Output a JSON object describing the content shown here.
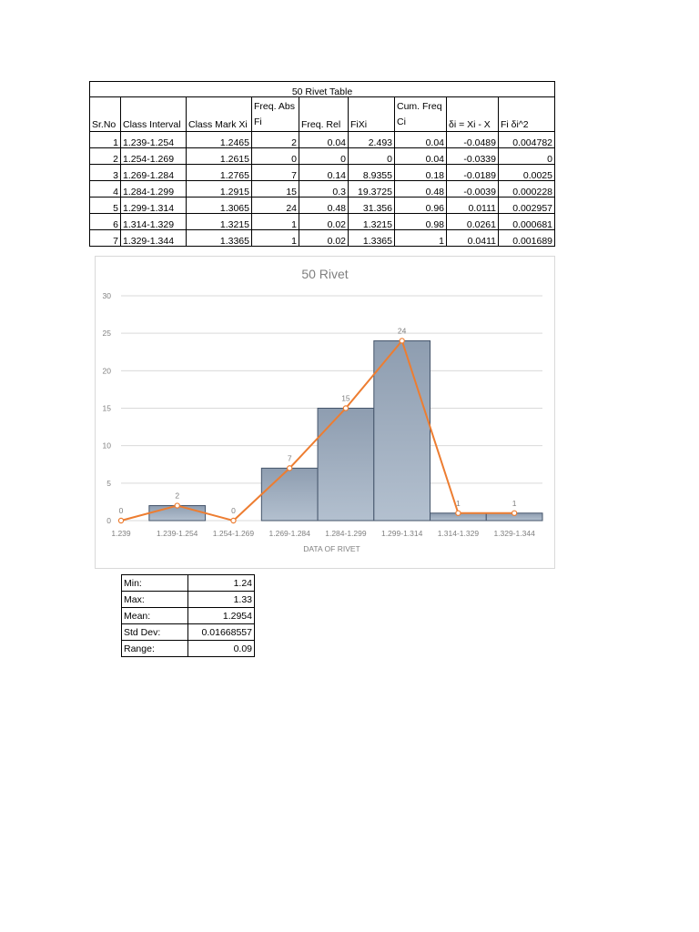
{
  "table": {
    "title": "50 Rivet Table",
    "headers": {
      "srno": "Sr.No",
      "interval": "Class Interval",
      "mark": "Class Mark Xi",
      "fi_line1": "Freq. Abs",
      "fi_line2": "Fi",
      "rel": "Freq. Rel",
      "fixi": "FiXi",
      "cum_line1": "Cum. Freq",
      "cum_line2": "Ci",
      "delta": "δi = Xi - X",
      "fidelta": "Fi δi^2"
    },
    "rows": [
      [
        "1",
        "1.239-1.254",
        "1.2465",
        "2",
        "0.04",
        "2.493",
        "0.04",
        "-0.0489",
        "0.004782"
      ],
      [
        "2",
        "1.254-1.269",
        "1.2615",
        "0",
        "0",
        "0",
        "0.04",
        "-0.0339",
        "0"
      ],
      [
        "3",
        "1.269-1.284",
        "1.2765",
        "7",
        "0.14",
        "8.9355",
        "0.18",
        "-0.0189",
        "0.0025"
      ],
      [
        "4",
        "1.284-1.299",
        "1.2915",
        "15",
        "0.3",
        "19.3725",
        "0.48",
        "-0.0039",
        "0.000228"
      ],
      [
        "5",
        "1.299-1.314",
        "1.3065",
        "24",
        "0.48",
        "31.356",
        "0.96",
        "0.0111",
        "0.002957"
      ],
      [
        "6",
        "1.314-1.329",
        "1.3215",
        "1",
        "0.02",
        "1.3215",
        "0.98",
        "0.0261",
        "0.000681"
      ],
      [
        "7",
        "1.329-1.344",
        "1.3365",
        "1",
        "0.02",
        "1.3365",
        "1",
        "0.0411",
        "0.001689"
      ]
    ]
  },
  "chart_data": {
    "type": "bar",
    "title": "50 Rivet",
    "xlabel": "DATA OF RIVET",
    "ylabel": "",
    "ylim": [
      0,
      30
    ],
    "yticks": [
      0,
      5,
      10,
      15,
      20,
      25,
      30
    ],
    "categories": [
      "1.239",
      "1.239-1.254",
      "1.254-1.269",
      "1.269-1.284",
      "1.284-1.299",
      "1.299-1.314",
      "1.314-1.329",
      "1.329-1.344"
    ],
    "series": [
      {
        "type": "bar",
        "values": [
          null,
          2,
          0,
          7,
          15,
          24,
          1,
          1
        ]
      },
      {
        "type": "line",
        "values": [
          0,
          2,
          0,
          7,
          15,
          24,
          1,
          1
        ]
      }
    ],
    "data_labels": [
      "0",
      "2",
      "0",
      "7",
      "15",
      "24",
      "1",
      "1"
    ],
    "grid": true,
    "legend": "none",
    "colors": {
      "bar_fill_top": "#8e9db0",
      "bar_fill_bottom": "#b3c0cf",
      "bar_stroke": "#44546a",
      "line": "#ed7d31",
      "grid": "#d9d9d9",
      "text": "#7f7f7f",
      "title": "#7f7f7f"
    }
  },
  "stats": [
    {
      "label": "Min:",
      "value": "1.24"
    },
    {
      "label": "Max:",
      "value": "1.33"
    },
    {
      "label": "Mean:",
      "value": "1.2954"
    },
    {
      "label": "Std Dev:",
      "value": "0.01668557"
    },
    {
      "label": "Range:",
      "value": "0.09"
    }
  ]
}
